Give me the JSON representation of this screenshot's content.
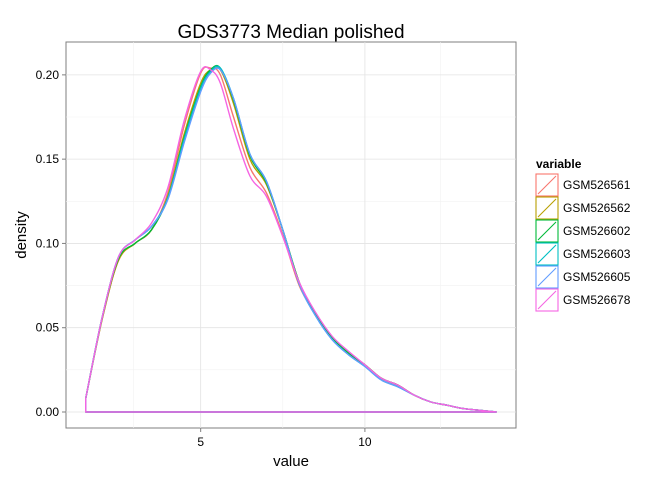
{
  "chart_data": {
    "type": "line",
    "title": "GDS3773 Median polished",
    "xlabel": "value",
    "ylabel": "density",
    "xlim": [
      0.9,
      14.6
    ],
    "ylim": [
      -0.0095,
      0.2195
    ],
    "xticks": [
      5,
      10
    ],
    "xtick_labels": [
      "5",
      "10"
    ],
    "yticks": [
      0.0,
      0.05,
      0.1,
      0.15,
      0.2
    ],
    "ytick_labels": [
      "0.00",
      "0.05",
      "0.10",
      "0.15",
      "0.20"
    ],
    "grid": true,
    "legend": {
      "title": "variable",
      "placement": "right"
    },
    "series": [
      {
        "name": "GSM526561",
        "color": "#F8766D",
        "x": [
          1.5,
          2.0,
          2.5,
          3.0,
          3.5,
          4.0,
          4.5,
          5.0,
          5.3,
          5.6,
          6.0,
          6.5,
          7.0,
          7.5,
          8.0,
          8.5,
          9.0,
          9.5,
          10.0,
          10.5,
          11.0,
          11.5,
          12.0,
          12.5,
          13.0,
          13.5,
          14.0
        ],
        "y": [
          0.008,
          0.055,
          0.09,
          0.1,
          0.108,
          0.13,
          0.17,
          0.201,
          0.204,
          0.2,
          0.175,
          0.145,
          0.13,
          0.105,
          0.075,
          0.058,
          0.044,
          0.035,
          0.028,
          0.02,
          0.016,
          0.01,
          0.006,
          0.004,
          0.002,
          0.001,
          0.0
        ]
      },
      {
        "name": "GSM526562",
        "color": "#B79F00",
        "x": [
          1.5,
          2.0,
          2.5,
          3.0,
          3.5,
          4.0,
          4.5,
          5.0,
          5.3,
          5.6,
          6.0,
          6.5,
          7.0,
          7.5,
          8.0,
          8.5,
          9.0,
          9.5,
          10.0,
          10.5,
          11.0,
          11.5,
          12.0,
          12.5,
          13.0,
          13.5,
          14.0
        ],
        "y": [
          0.008,
          0.055,
          0.09,
          0.1,
          0.108,
          0.128,
          0.165,
          0.195,
          0.203,
          0.203,
          0.183,
          0.15,
          0.135,
          0.108,
          0.077,
          0.058,
          0.044,
          0.035,
          0.028,
          0.02,
          0.016,
          0.01,
          0.006,
          0.004,
          0.002,
          0.001,
          0.0
        ]
      },
      {
        "name": "GSM526602",
        "color": "#00BA38",
        "x": [
          1.5,
          2.0,
          2.5,
          3.0,
          3.5,
          4.0,
          4.5,
          5.0,
          5.3,
          5.6,
          6.0,
          6.5,
          7.0,
          7.5,
          8.0,
          8.5,
          9.0,
          9.5,
          10.0,
          10.5,
          11.0,
          11.5,
          12.0,
          12.5,
          13.0,
          13.5,
          14.0
        ],
        "y": [
          0.008,
          0.056,
          0.091,
          0.1,
          0.108,
          0.127,
          0.163,
          0.193,
          0.203,
          0.204,
          0.185,
          0.152,
          0.136,
          0.108,
          0.077,
          0.058,
          0.044,
          0.035,
          0.028,
          0.02,
          0.016,
          0.01,
          0.006,
          0.004,
          0.002,
          0.001,
          0.0
        ]
      },
      {
        "name": "GSM526603",
        "color": "#00BFC4",
        "x": [
          1.5,
          2.0,
          2.5,
          3.0,
          3.5,
          4.0,
          4.5,
          5.0,
          5.3,
          5.6,
          6.0,
          6.5,
          7.0,
          7.5,
          8.0,
          8.5,
          9.0,
          9.5,
          10.0,
          10.5,
          11.0,
          11.5,
          12.0,
          12.5,
          13.0,
          13.5,
          14.0
        ],
        "y": [
          0.008,
          0.056,
          0.092,
          0.102,
          0.11,
          0.127,
          0.162,
          0.192,
          0.202,
          0.204,
          0.186,
          0.153,
          0.137,
          0.108,
          0.076,
          0.057,
          0.043,
          0.034,
          0.027,
          0.019,
          0.015,
          0.01,
          0.006,
          0.004,
          0.002,
          0.001,
          0.0
        ]
      },
      {
        "name": "GSM526605",
        "color": "#619CFF",
        "x": [
          1.5,
          2.0,
          2.5,
          3.0,
          3.5,
          4.0,
          4.5,
          5.0,
          5.3,
          5.6,
          6.0,
          6.5,
          7.0,
          7.5,
          8.0,
          8.5,
          9.0,
          9.5,
          10.0,
          10.5,
          11.0,
          11.5,
          12.0,
          12.5,
          13.0,
          13.5,
          14.0
        ],
        "y": [
          0.008,
          0.056,
          0.092,
          0.102,
          0.11,
          0.126,
          0.16,
          0.19,
          0.201,
          0.203,
          0.186,
          0.153,
          0.137,
          0.108,
          0.076,
          0.057,
          0.043,
          0.034,
          0.027,
          0.019,
          0.015,
          0.01,
          0.006,
          0.004,
          0.002,
          0.001,
          0.0
        ]
      },
      {
        "name": "GSM526678",
        "color": "#F564E3",
        "x": [
          1.5,
          2.0,
          2.5,
          3.0,
          3.5,
          4.0,
          4.5,
          5.0,
          5.3,
          5.6,
          6.0,
          6.5,
          7.0,
          7.5,
          8.0,
          8.5,
          9.0,
          9.5,
          10.0,
          10.5,
          11.0,
          11.5,
          12.0,
          12.5,
          13.0,
          13.5,
          14.0
        ],
        "y": [
          0.008,
          0.056,
          0.092,
          0.102,
          0.112,
          0.133,
          0.173,
          0.202,
          0.203,
          0.195,
          0.168,
          0.14,
          0.128,
          0.104,
          0.077,
          0.059,
          0.045,
          0.036,
          0.028,
          0.02,
          0.016,
          0.01,
          0.006,
          0.004,
          0.002,
          0.001,
          0.0
        ]
      }
    ]
  }
}
